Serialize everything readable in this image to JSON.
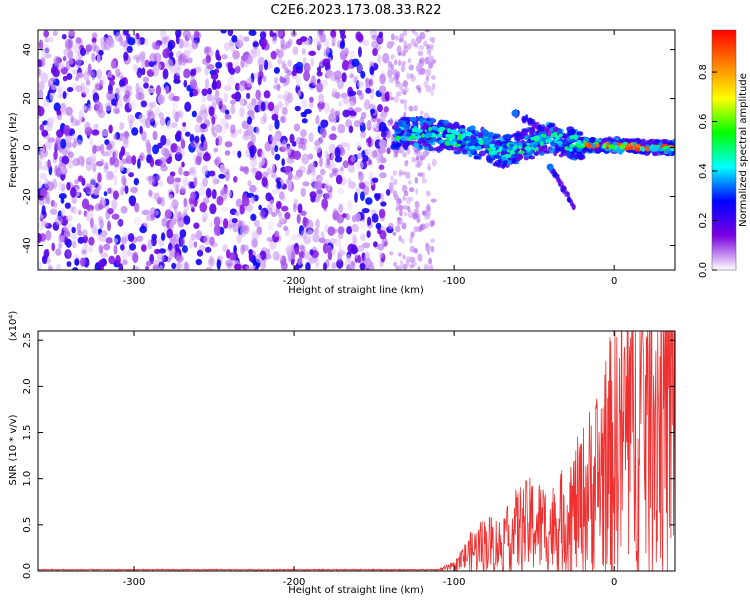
{
  "title": "C2E6.2023.173.08.33.R22",
  "chart_data": [
    {
      "type": "heatmap",
      "name": "spectrogram",
      "xlabel": "Height of straight line (km)",
      "ylabel": "Frequency (Hz)",
      "xlim": [
        -360,
        38
      ],
      "ylim": [
        -50,
        48
      ],
      "xticks": [
        -300,
        -200,
        -100,
        0
      ],
      "yticks": [
        -40,
        -20,
        0,
        20,
        40
      ],
      "colorbar": {
        "label": "Normalized spectral amplitude",
        "range": [
          0.0,
          0.97
        ],
        "ticks": [
          0.0,
          0.2,
          0.4,
          0.6,
          0.8
        ],
        "colors": [
          "#ffffff",
          "#7a00e0",
          "#0000ff",
          "#00ffff",
          "#00ff00",
          "#ffff00",
          "#ff8000",
          "#ff0000"
        ]
      },
      "features": {
        "noise_region_km": [
          -360,
          -140
        ],
        "noise_amplitude": [
          0.05,
          0.3
        ],
        "sparse_noise_region_km": [
          -140,
          -112
        ],
        "signal_ridge": [
          {
            "x": -138,
            "f": 6
          },
          {
            "x": -120,
            "f": 6
          },
          {
            "x": -100,
            "f": 4
          },
          {
            "x": -80,
            "f": 1
          },
          {
            "x": -70,
            "f": -2
          },
          {
            "x": -60,
            "f": 0
          },
          {
            "x": -40,
            "f": 4
          },
          {
            "x": -30,
            "f": 2
          },
          {
            "x": -20,
            "f": 1
          },
          {
            "x": 0,
            "f": 1
          },
          {
            "x": 20,
            "f": 0
          },
          {
            "x": 38,
            "f": 0
          }
        ],
        "side_streaks": [
          {
            "x0": -62,
            "f0": 14,
            "x1": -40,
            "f1": 6
          },
          {
            "x0": -40,
            "f0": -8,
            "x1": -25,
            "f1": -24
          }
        ]
      }
    },
    {
      "type": "line",
      "name": "snr",
      "xlabel": "Height of straight line (km)",
      "ylabel": "SNR (10 * v/v)",
      "ylabel_scale": "(x10⁴)",
      "xlim": [
        -360,
        38
      ],
      "ylim": [
        0.0,
        2.6
      ],
      "xticks": [
        -300,
        -200,
        -100,
        0
      ],
      "yticks": [
        0.0,
        0.5,
        1.0,
        1.5,
        2.0,
        2.5
      ],
      "line_color": "#ee3030",
      "trend": [
        {
          "x": -360,
          "y": 0.01
        },
        {
          "x": -110,
          "y": 0.01
        },
        {
          "x": -100,
          "y": 0.05
        },
        {
          "x": -90,
          "y": 0.2
        },
        {
          "x": -80,
          "y": 0.3
        },
        {
          "x": -70,
          "y": 0.28
        },
        {
          "x": -60,
          "y": 0.45
        },
        {
          "x": -50,
          "y": 0.5
        },
        {
          "x": -40,
          "y": 0.45
        },
        {
          "x": -30,
          "y": 0.55
        },
        {
          "x": -20,
          "y": 0.75
        },
        {
          "x": -10,
          "y": 1.0
        },
        {
          "x": 0,
          "y": 1.3
        },
        {
          "x": 10,
          "y": 1.6
        },
        {
          "x": 20,
          "y": 1.7
        },
        {
          "x": 30,
          "y": 1.75
        },
        {
          "x": 38,
          "y": 1.8
        }
      ],
      "max_value": 2.6
    }
  ]
}
